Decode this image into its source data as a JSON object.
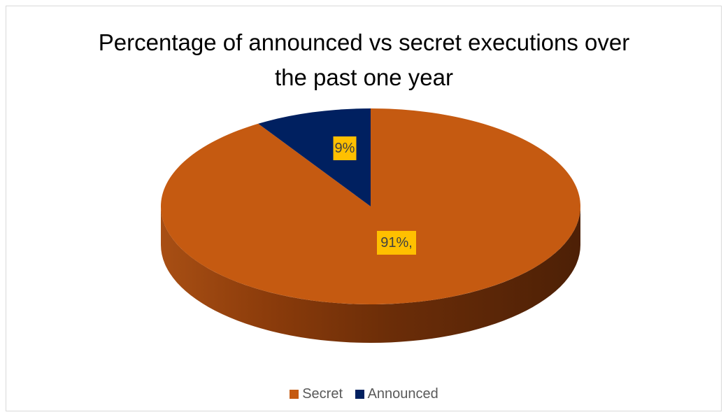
{
  "chart_data": {
    "type": "pie",
    "title": "Percentage of announced vs secret executions over the past one year",
    "title_lines": [
      "Percentage of announced vs secret executions over",
      "the past one year"
    ],
    "slices": [
      {
        "label": "Secret",
        "value": 91,
        "data_label": "91%,",
        "color": "#c55a11"
      },
      {
        "label": "Announced",
        "value": 9,
        "data_label": "9%",
        "color": "#002060"
      }
    ],
    "data_label_background": "#ffc000",
    "legend_placement": "bottom",
    "style": "3d"
  }
}
